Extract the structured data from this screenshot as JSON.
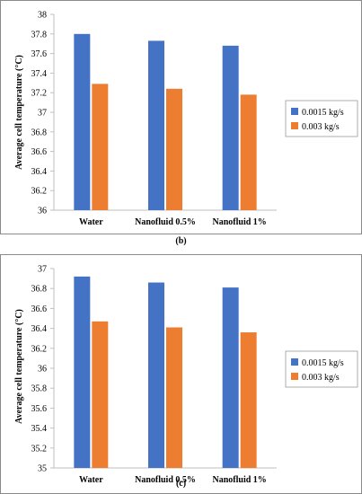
{
  "chart_data": [
    {
      "type": "bar",
      "panel_label": "(b)",
      "categories": [
        "Water",
        "Nanofluid 0.5%",
        "Nanofluid 1%"
      ],
      "series": [
        {
          "name": "0.0015 kg/s",
          "values": [
            37.8,
            37.73,
            37.68
          ]
        },
        {
          "name": "0.003 kg/s",
          "values": [
            37.29,
            37.24,
            37.18
          ]
        }
      ],
      "xlabel": "",
      "ylabel": "Average cell temperature (°C)",
      "ylim": [
        36,
        38
      ],
      "yticks": [
        "36",
        "36.2",
        "36.4",
        "36.6",
        "36.8",
        "37",
        "37.2",
        "37.4",
        "37.6",
        "37.8",
        "38"
      ],
      "grid": false,
      "legend_position": "right"
    },
    {
      "type": "bar",
      "panel_label": "(c)",
      "categories": [
        "Water",
        "Nanofluid 0.5%",
        "Nanofluid 1%"
      ],
      "series": [
        {
          "name": "0.0015 kg/s",
          "values": [
            36.92,
            36.86,
            36.81
          ]
        },
        {
          "name": "0.003 kg/s",
          "values": [
            36.47,
            36.41,
            36.36
          ]
        }
      ],
      "xlabel": "",
      "ylabel": "Average cell temperature (°C)",
      "ylim": [
        35,
        37
      ],
      "yticks": [
        "35",
        "35.2",
        "35.4",
        "35.6",
        "35.8",
        "36",
        "36.2",
        "36.4",
        "36.6",
        "36.8",
        "37"
      ],
      "grid": false,
      "legend_position": "right"
    }
  ],
  "colors": {
    "series_1": "#4472C4",
    "series_2": "#ED7D31",
    "axis": "#bfbfbf"
  }
}
